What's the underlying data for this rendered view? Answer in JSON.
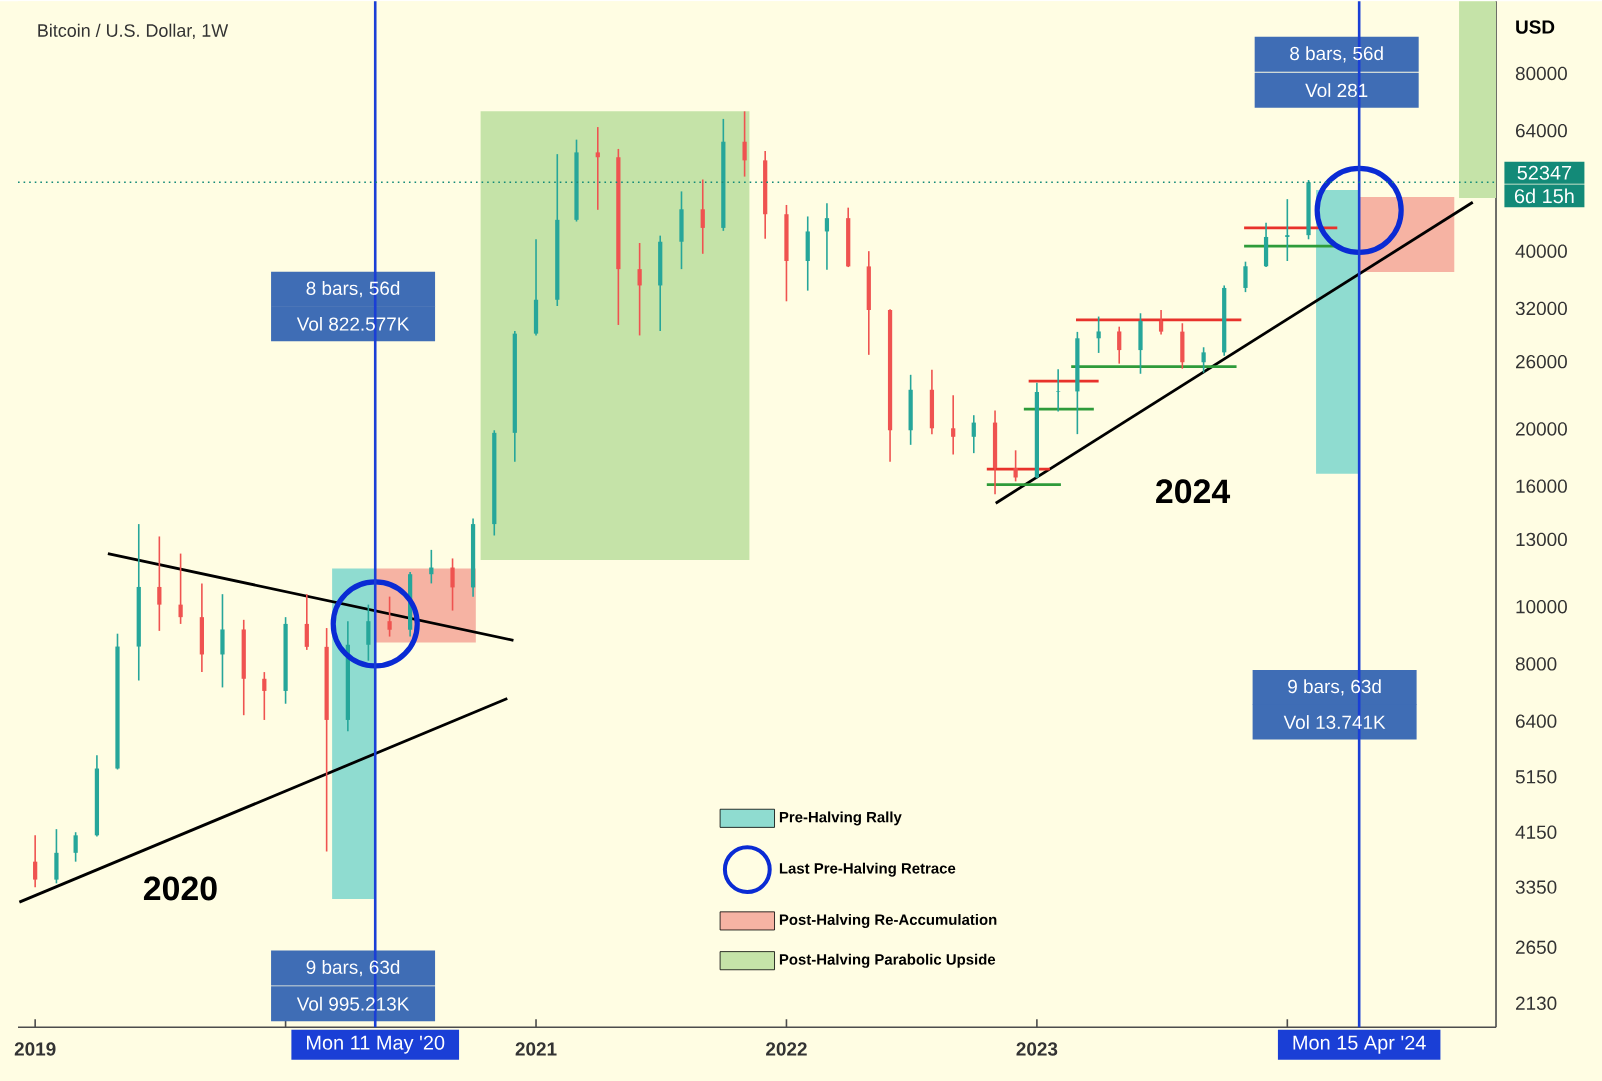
{
  "chart_data": {
    "type": "candlestick",
    "title": "Bitcoin / U.S. Dollar, 1W",
    "ylabel": "USD",
    "xlim": [
      "2018-12-07",
      "2024-11-01"
    ],
    "ylim": [
      1940,
      106000
    ],
    "log": true,
    "grid": false,
    "legend": "bottom",
    "xticks": [
      {
        "value": "2019-01-01",
        "label": "2019"
      },
      {
        "value": "2020-01-01",
        "label": null
      },
      {
        "value": "2021-01-01",
        "label": "2021"
      },
      {
        "value": "2022-01-01",
        "label": "2022"
      },
      {
        "value": "2023-01-01",
        "label": "2023"
      },
      {
        "value": "2024-01-01",
        "label": null
      }
    ],
    "yticks": [
      2130,
      2650,
      3350,
      4150,
      5150,
      6400,
      8000,
      10000,
      13000,
      16000,
      20000,
      26000,
      32000,
      40000,
      64000,
      80000
    ],
    "series": [
      {
        "type": "area",
        "name": "Pre-Halving Rally",
        "color": "#8fdcd0",
        "x": [
          "2020-03-09",
          "2020-05-11"
        ],
        "lower": [
          3200,
          3200
        ],
        "upper": [
          11600,
          11600
        ],
        "values": [
          null,
          null
        ]
      },
      {
        "type": "scatter",
        "name": "Last Pre-Halving Retrace",
        "color": "#0a2bd4",
        "marker": "circle",
        "x": [
          "2020-05-11",
          "2024-04-15"
        ],
        "values": [
          9350,
          46900
        ]
      },
      {
        "type": "area",
        "name": "Post-Halving Re-Accumulation",
        "color": "#f6b3a3",
        "x": [
          "2020-05-11",
          "2020-10-05"
        ],
        "lower": [
          8700,
          8700
        ],
        "upper": [
          11600,
          11600
        ],
        "values": [
          null,
          null
        ]
      },
      {
        "type": "area",
        "name": "Post-Halving Parabolic Upside",
        "color": "#c5e3a8",
        "x": [
          "2020-10-12",
          "2021-11-08"
        ],
        "lower": [
          12000,
          12000
        ],
        "upper": [
          69000,
          69000
        ],
        "values": [
          null,
          null
        ]
      },
      {
        "type": "area",
        "color": "#8fdcd0",
        "x": [
          "2024-02-12",
          "2024-04-15"
        ],
        "lower": [
          16800,
          16800
        ],
        "upper": [
          50800,
          50800
        ],
        "values": [
          null,
          null
        ]
      },
      {
        "type": "area",
        "color": "#f6b3a3",
        "x": [
          "2024-04-15",
          "2024-09-01"
        ],
        "lower": [
          36900,
          36900
        ],
        "upper": [
          49400,
          49400
        ],
        "values": [
          null,
          null
        ]
      },
      {
        "type": "area",
        "color": "#c5e3a8",
        "x": [
          "2024-09-08",
          "2024-11-01"
        ],
        "lower": [
          49200,
          49200
        ],
        "upper": [
          106000,
          106000
        ],
        "values": [
          null,
          null
        ]
      },
      {
        "type": "line",
        "color": "#000000",
        "x": [
          "2018-12-09",
          "2020-11-20"
        ],
        "values": [
          3160,
          6990
        ]
      },
      {
        "type": "line",
        "color": "#000000",
        "x": [
          "2019-04-17",
          "2020-11-29"
        ],
        "values": [
          12300,
          8770
        ]
      },
      {
        "type": "line",
        "color": "#000000",
        "x": [
          "2022-11-02",
          "2024-09-28"
        ],
        "values": [
          14970,
          48400
        ]
      },
      {
        "type": "line",
        "color": "#e8322b",
        "x": [
          "2022-10-20",
          "2023-01-20"
        ],
        "values": [
          17100,
          17100
        ]
      },
      {
        "type": "line",
        "color": "#2e9b3a",
        "x": [
          "2022-10-20",
          "2023-02-05"
        ],
        "values": [
          16100,
          16100
        ]
      },
      {
        "type": "line",
        "color": "#e8322b",
        "x": [
          "2022-12-20",
          "2023-04-01"
        ],
        "values": [
          24100,
          24100
        ]
      },
      {
        "type": "line",
        "color": "#2e9b3a",
        "x": [
          "2022-12-13",
          "2023-03-25"
        ],
        "values": [
          21600,
          21600
        ]
      },
      {
        "type": "line",
        "color": "#e8322b",
        "x": [
          "2023-02-27",
          "2023-10-26"
        ],
        "values": [
          30600,
          30600
        ]
      },
      {
        "type": "line",
        "color": "#2e9b3a",
        "x": [
          "2023-02-20",
          "2023-10-19"
        ],
        "values": [
          25500,
          25500
        ]
      },
      {
        "type": "line",
        "color": "#e8322b",
        "x": [
          "2023-10-30",
          "2024-03-14"
        ],
        "values": [
          43800,
          43800
        ]
      },
      {
        "type": "line",
        "color": "#2e9b3a",
        "x": [
          "2023-10-30",
          "2024-03-14"
        ],
        "values": [
          40800,
          40800
        ]
      },
      {
        "x": [
          "2019-01",
          "2019-02",
          "2019-03",
          "2019-04",
          "2019-05",
          "2019-06",
          "2019-07",
          "2019-08",
          "2019-09",
          "2019-10",
          "2019-11",
          "2019-12",
          "2020-01",
          "2020-02",
          "2020-03",
          "2020-04",
          "2020-05",
          "2020-06",
          "2020-07",
          "2020-08",
          "2020-09",
          "2020-10",
          "2020-11",
          "2020-12",
          "2021-01",
          "2021-02",
          "2021-03",
          "2021-04",
          "2021-05",
          "2021-06",
          "2021-07",
          "2021-08",
          "2021-09",
          "2021-10",
          "2021-11",
          "2021-12",
          "2022-01",
          "2022-02",
          "2022-03",
          "2022-04",
          "2022-05",
          "2022-06",
          "2022-07",
          "2022-08",
          "2022-09",
          "2022-10",
          "2022-11",
          "2022-12",
          "2023-01",
          "2023-02",
          "2023-03",
          "2023-04",
          "2023-05",
          "2023-06",
          "2023-07",
          "2023-08",
          "2023-09",
          "2023-10",
          "2023-11",
          "2023-12",
          "2024-01",
          "2024-02"
        ],
        "ohlc": [
          [
            3700,
            4100,
            3350,
            3450
          ],
          [
            3450,
            4200,
            3400,
            3830
          ],
          [
            3830,
            4150,
            3700,
            4100
          ],
          [
            4100,
            5600,
            4080,
            5320
          ],
          [
            5320,
            9000,
            5300,
            8560
          ],
          [
            8560,
            13800,
            7500,
            10800
          ],
          [
            10800,
            13150,
            9100,
            10080
          ],
          [
            10080,
            12300,
            9350,
            9600
          ],
          [
            9600,
            10950,
            7750,
            8300
          ],
          [
            8300,
            10500,
            7300,
            9150
          ],
          [
            9150,
            9500,
            6550,
            7550
          ],
          [
            7550,
            7750,
            6430,
            7200
          ],
          [
            7200,
            9600,
            6850,
            9350
          ],
          [
            9350,
            10500,
            8450,
            8550
          ],
          [
            8550,
            9200,
            3850,
            6430
          ],
          [
            6430,
            9450,
            6150,
            8620
          ],
          [
            8620,
            10080,
            8100,
            9450
          ],
          [
            9450,
            10400,
            8900,
            9140
          ],
          [
            9140,
            11450,
            8900,
            11350
          ],
          [
            11350,
            12480,
            10950,
            11650
          ],
          [
            11650,
            12070,
            9850,
            10780
          ],
          [
            10780,
            14100,
            10400,
            13800
          ],
          [
            13800,
            19900,
            13200,
            19700
          ],
          [
            19700,
            29300,
            17600,
            29000
          ],
          [
            29000,
            41900,
            28800,
            33100
          ],
          [
            33100,
            58400,
            32300,
            45200
          ],
          [
            45200,
            61800,
            44900,
            58800
          ],
          [
            58800,
            64900,
            47000,
            57700
          ],
          [
            57700,
            59600,
            30000,
            37300
          ],
          [
            37300,
            41300,
            28800,
            35000
          ],
          [
            35000,
            42500,
            29300,
            41500
          ],
          [
            41500,
            50500,
            37300,
            47100
          ],
          [
            47100,
            52900,
            39600,
            43800
          ],
          [
            43800,
            67000,
            43300,
            61300
          ],
          [
            61300,
            69000,
            53500,
            57000
          ],
          [
            57000,
            59100,
            42000,
            46200
          ],
          [
            46200,
            47900,
            32900,
            38500
          ],
          [
            38500,
            45800,
            34300,
            43200
          ],
          [
            43200,
            48200,
            37200,
            45500
          ],
          [
            45500,
            47400,
            37600,
            37700
          ],
          [
            37700,
            40000,
            26700,
            31800
          ],
          [
            31800,
            31900,
            17600,
            19900
          ],
          [
            19900,
            24700,
            18800,
            23300
          ],
          [
            23300,
            25200,
            19600,
            20050
          ],
          [
            20050,
            22800,
            18100,
            19400
          ],
          [
            19400,
            21100,
            18200,
            20500
          ],
          [
            20500,
            21500,
            15500,
            17170
          ],
          [
            17170,
            18400,
            16300,
            16550
          ],
          [
            16550,
            23950,
            16500,
            23100
          ],
          [
            23100,
            25250,
            21400,
            23150
          ],
          [
            23150,
            29200,
            19600,
            28480
          ],
          [
            28480,
            31000,
            26900,
            29250
          ],
          [
            29250,
            29800,
            25800,
            27200
          ],
          [
            27200,
            31400,
            24800,
            30480
          ],
          [
            30480,
            31800,
            28900,
            29230
          ],
          [
            29230,
            30200,
            25300,
            25940
          ],
          [
            25940,
            27500,
            24900,
            26960
          ],
          [
            26960,
            35000,
            26600,
            34660
          ],
          [
            34660,
            38400,
            34100,
            37720
          ],
          [
            37720,
            44700,
            37600,
            42280
          ],
          [
            42280,
            49000,
            38500,
            42580
          ],
          [
            42580,
            52800,
            41900,
            52347
          ]
        ],
        "colors": [
          "#ef5350",
          "#26a69a",
          "#26a69a",
          "#26a69a",
          "#26a69a",
          "#26a69a",
          "#ef5350",
          "#ef5350",
          "#ef5350",
          "#26a69a",
          "#ef5350",
          "#ef5350",
          "#26a69a",
          "#ef5350",
          "#ef5350",
          "#26a69a",
          "#26a69a",
          "#ef5350",
          "#26a69a",
          "#26a69a",
          "#ef5350",
          "#26a69a",
          "#26a69a",
          "#26a69a",
          "#26a69a",
          "#26a69a",
          "#26a69a",
          "#ef5350",
          "#ef5350",
          "#ef5350",
          "#26a69a",
          "#26a69a",
          "#ef5350",
          "#26a69a",
          "#ef5350",
          "#ef5350",
          "#ef5350",
          "#26a69a",
          "#26a69a",
          "#ef5350",
          "#ef5350",
          "#ef5350",
          "#26a69a",
          "#ef5350",
          "#ef5350",
          "#26a69a",
          "#ef5350",
          "#ef5350",
          "#26a69a",
          "#26a69a",
          "#26a69a",
          "#26a69a",
          "#ef5350",
          "#26a69a",
          "#ef5350",
          "#ef5350",
          "#26a69a",
          "#26a69a",
          "#26a69a",
          "#26a69a",
          "#26a69a",
          "#26a69a"
        ]
      }
    ],
    "ref_lines": [
      {
        "axis": "x",
        "value": "2020-05-11",
        "label": "Mon 11 May '20",
        "color": "#1a3fd6"
      },
      {
        "axis": "x",
        "value": "2024-04-15",
        "label": "Mon 15 Apr '24",
        "color": "#1a3fd6"
      },
      {
        "axis": "y",
        "value": 52347,
        "label": "52347",
        "color": "#138a78",
        "line_style": "dotted"
      }
    ],
    "annotations": [
      "8 bars, 56d",
      "Vol 822.577K",
      "9 bars, 63d",
      "Vol 995.213K",
      "8 bars, 56d",
      "Vol 281",
      "9 bars, 63d",
      "Vol 13.741K",
      "2020",
      "2024",
      {
        "text": "6d 15h",
        "x": "2024-11-01",
        "y": 52347
      }
    ]
  }
}
